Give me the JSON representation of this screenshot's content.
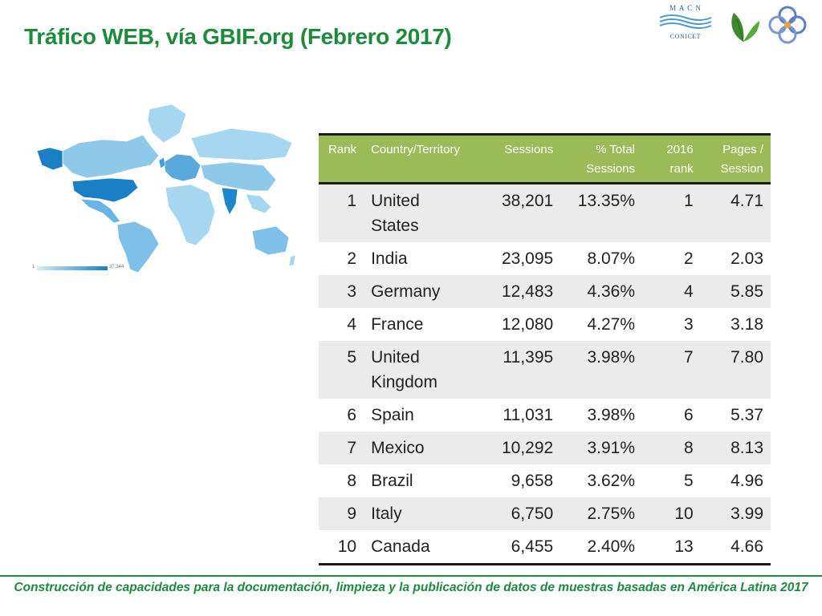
{
  "slide": {
    "title": "Tráfico WEB, vía GBIF.org (Febrero 2017)",
    "footer": "Construcción de capacidades para la documentación, limpieza y la publicación de datos de muestras basadas en América Latina 2017"
  },
  "logos": {
    "macn_top": "M A C N",
    "macn_bottom": "CONICET",
    "leaf": "leaf-logo",
    "rings": "rings-logo"
  },
  "map": {
    "legend_min": "1",
    "legend_max": "37,344",
    "colors": {
      "low": "#d7edf8",
      "mid": "#8ec9ea",
      "high": "#1a7fc5"
    }
  },
  "table": {
    "headers": {
      "rank": "Rank",
      "country": "Country/Territory",
      "sessions": "Sessions",
      "pct": "% Total Sessions",
      "rank2016": "2016 rank",
      "pages": "Pages / Session"
    },
    "rows": [
      {
        "rank": "1",
        "country": "United States",
        "sessions": "38,201",
        "pct": "13.35%",
        "rank2016": "1",
        "pages": "4.71"
      },
      {
        "rank": "2",
        "country": "India",
        "sessions": "23,095",
        "pct": "8.07%",
        "rank2016": "2",
        "pages": "2.03"
      },
      {
        "rank": "3",
        "country": "Germany",
        "sessions": "12,483",
        "pct": "4.36%",
        "rank2016": "4",
        "pages": "5.85"
      },
      {
        "rank": "4",
        "country": "France",
        "sessions": "12,080",
        "pct": "4.27%",
        "rank2016": "3",
        "pages": "3.18"
      },
      {
        "rank": "5",
        "country": "United Kingdom",
        "sessions": "11,395",
        "pct": "3.98%",
        "rank2016": "7",
        "pages": "7.80"
      },
      {
        "rank": "6",
        "country": "Spain",
        "sessions": "11,031",
        "pct": "3.98%",
        "rank2016": "6",
        "pages": "5.37"
      },
      {
        "rank": "7",
        "country": "Mexico",
        "sessions": "10,292",
        "pct": "3.91%",
        "rank2016": "8",
        "pages": "8.13"
      },
      {
        "rank": "8",
        "country": "Brazil",
        "sessions": "9,658",
        "pct": "3.62%",
        "rank2016": "5",
        "pages": "4.96"
      },
      {
        "rank": "9",
        "country": "Italy",
        "sessions": "6,750",
        "pct": "2.75%",
        "rank2016": "10",
        "pages": "3.99"
      },
      {
        "rank": "10",
        "country": "Canada",
        "sessions": "6,455",
        "pct": "2.40%",
        "rank2016": "13",
        "pages": "4.66"
      }
    ]
  },
  "theme": {
    "title_color": "#1e8a3c",
    "header_bg": "#9bbb59",
    "stripe_bg": "#ebebeb"
  }
}
